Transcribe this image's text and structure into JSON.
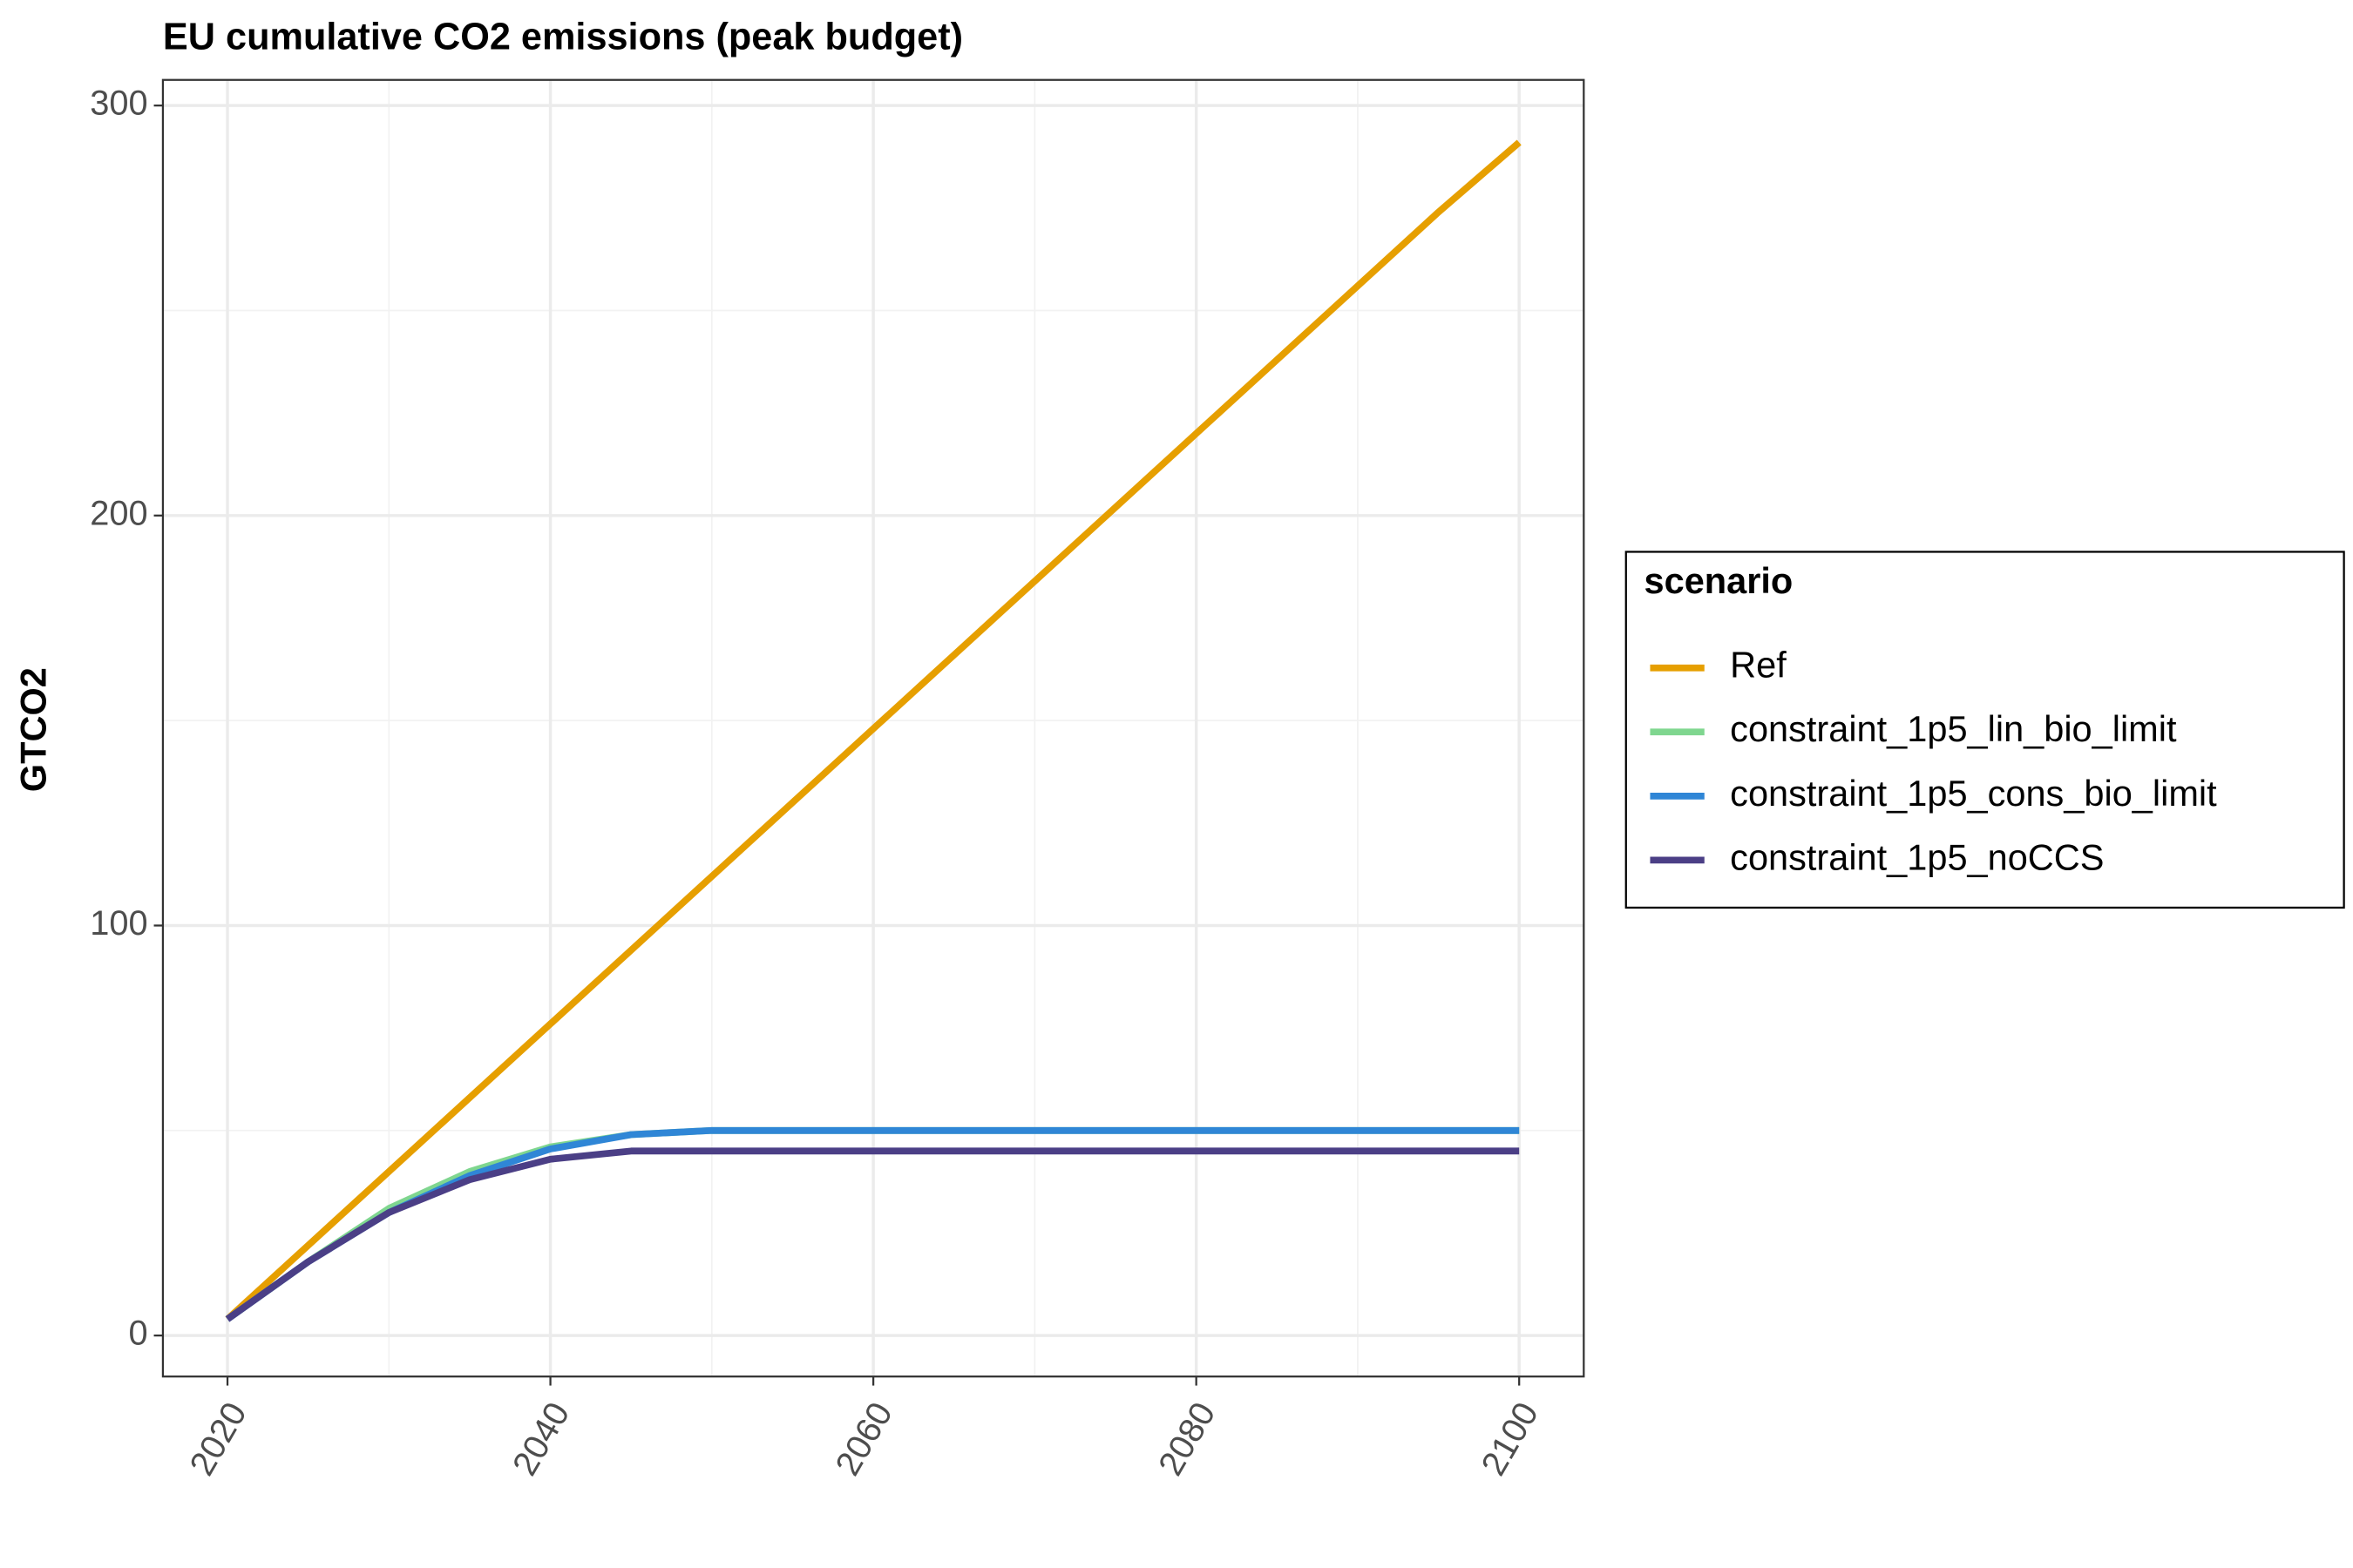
{
  "chart_data": {
    "type": "line",
    "title": "EU cumulative CO2 emissions (peak budget)",
    "y_label": "GTCO2",
    "x": [
      2020,
      2025,
      2030,
      2035,
      2040,
      2045,
      2050,
      2055,
      2060,
      2065,
      2070,
      2075,
      2080,
      2085,
      2090,
      2095,
      2100
    ],
    "series": [
      {
        "name": "Ref",
        "color": "#e69f00",
        "values": [
          4,
          22,
          40,
          58,
          76,
          94,
          112,
          130,
          148,
          166,
          184,
          202,
          220,
          238,
          256,
          274,
          291
        ]
      },
      {
        "name": "constraint_1p5_lin_bio_limit",
        "color": "#7fd68f",
        "values": [
          4,
          18,
          31,
          40,
          46,
          49,
          50,
          50,
          50,
          50,
          50,
          50,
          50,
          50,
          50,
          50,
          50
        ]
      },
      {
        "name": "constraint_1p5_cons_bio_limit",
        "color": "#2f86d6",
        "values": [
          4,
          18,
          30,
          39,
          45.5,
          49,
          50,
          50,
          50,
          50,
          50,
          50,
          50,
          50,
          50,
          50,
          50
        ]
      },
      {
        "name": "constraint_1p5_noCCS",
        "color": "#4b3f86",
        "values": [
          4,
          18,
          30,
          38,
          43,
          45,
          45,
          45,
          45,
          45,
          45,
          45,
          45,
          45,
          45,
          45,
          45
        ]
      }
    ],
    "legend_title": "scenario",
    "legend_position": "right",
    "xlim": [
      2016,
      2104
    ],
    "xticks": [
      2020,
      2040,
      2060,
      2080,
      2100
    ],
    "x_minor_grid": [
      2030,
      2050,
      2070,
      2090
    ],
    "ylim": [
      -10,
      306.25
    ],
    "yticks": [
      0,
      100,
      200,
      300
    ],
    "y_minor_grid": [
      50,
      150,
      250
    ],
    "grid": true
  }
}
